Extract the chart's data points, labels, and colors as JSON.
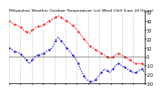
{
  "title": "Milwaukee Weather Outdoor Temperature (vs) Wind Chill (Last 24 Hours)",
  "background_color": "#ffffff",
  "grid_color": "#aaaaaa",
  "red_color": "#ff0000",
  "blue_color": "#0000cc",
  "black_color": "#000000",
  "ylim": [
    -30,
    50
  ],
  "yticks": [
    -30,
    -20,
    -10,
    0,
    10,
    20,
    30,
    40,
    50
  ],
  "num_points": 48,
  "temp_data": [
    40,
    38,
    36,
    35,
    33,
    30,
    28,
    26,
    30,
    32,
    34,
    34,
    36,
    38,
    40,
    42,
    44,
    46,
    44,
    42,
    40,
    38,
    35,
    32,
    28,
    24,
    20,
    16,
    12,
    10,
    8,
    6,
    4,
    2,
    0,
    -2,
    0,
    2,
    4,
    2,
    0,
    -2,
    -4,
    -6,
    -8,
    -8,
    -8,
    -10
  ],
  "windchill_data": [
    10,
    8,
    6,
    5,
    3,
    0,
    -4,
    -8,
    -4,
    0,
    2,
    2,
    4,
    6,
    8,
    10,
    18,
    22,
    18,
    14,
    10,
    6,
    2,
    -2,
    -8,
    -16,
    -22,
    -26,
    -28,
    -28,
    -26,
    -22,
    -18,
    -14,
    -16,
    -18,
    -14,
    -10,
    -8,
    -10,
    -12,
    -14,
    -16,
    -18,
    -18,
    -16,
    -14,
    -18
  ]
}
